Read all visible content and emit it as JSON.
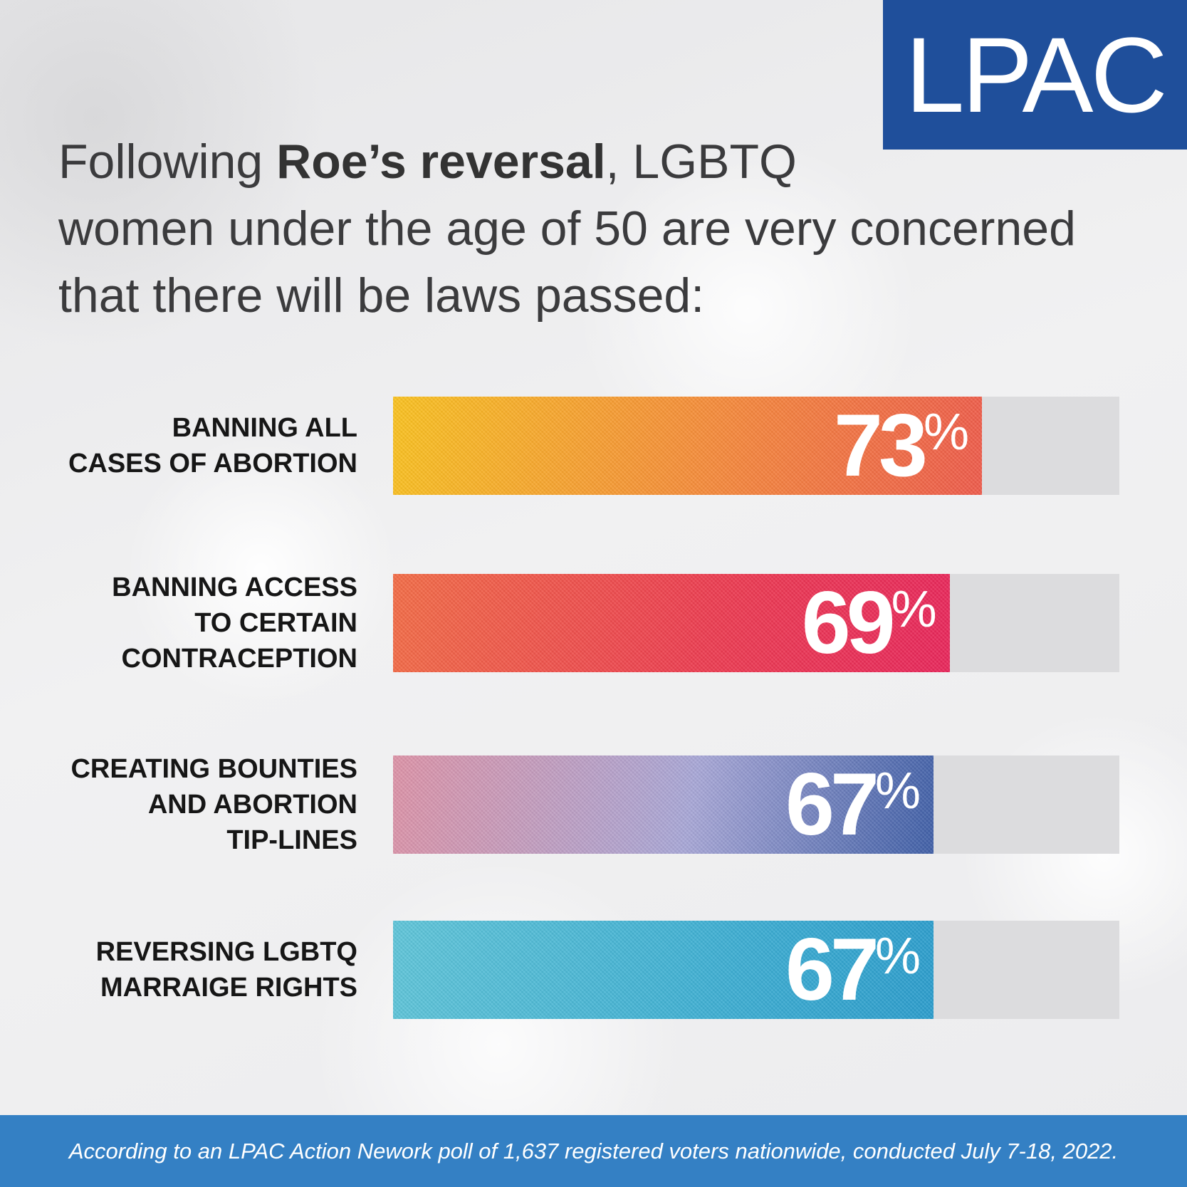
{
  "logo": {
    "text": "LPAC"
  },
  "headline": {
    "line1_pre": "Following ",
    "line1_bold": "Roe’s reversal",
    "line1_post": ", LGBTQ",
    "line2": "women under the age of 50 are very concerned",
    "line3": "that there will be laws passed:"
  },
  "chart_data": {
    "type": "bar",
    "orientation": "horizontal",
    "xlim": [
      0,
      100
    ],
    "categories": [
      [
        "BANNING ALL",
        "CASES OF ABORTION"
      ],
      [
        "BANNING ACCESS",
        "TO CERTAIN",
        "CONTRACEPTION"
      ],
      [
        "CREATING BOUNTIES",
        "AND ABORTION",
        "TIP-LINES"
      ],
      [
        "REVERSING LGBTQ",
        "MARRAIGE RIGHTS"
      ]
    ],
    "values": [
      73,
      69,
      67,
      67
    ],
    "value_labels": [
      "73",
      "69",
      "67",
      "67"
    ],
    "unit_symbol": "%",
    "colors": [
      [
        "#f9c11f",
        "#f5893a",
        "#ee5a4a"
      ],
      [
        "#f26b45",
        "#ec3c4f",
        "#e8255a"
      ],
      [
        "#dc92a6",
        "#a7a6d6",
        "#3e5ea6"
      ],
      [
        "#5ec4d8",
        "#3fb0d3",
        "#2a9ccc"
      ]
    ],
    "track_color": "#dcdcde"
  },
  "footer": {
    "text": "According to an LPAC Action Nework poll of 1,637 registered voters nationwide, conducted July 7-18, 2022."
  }
}
